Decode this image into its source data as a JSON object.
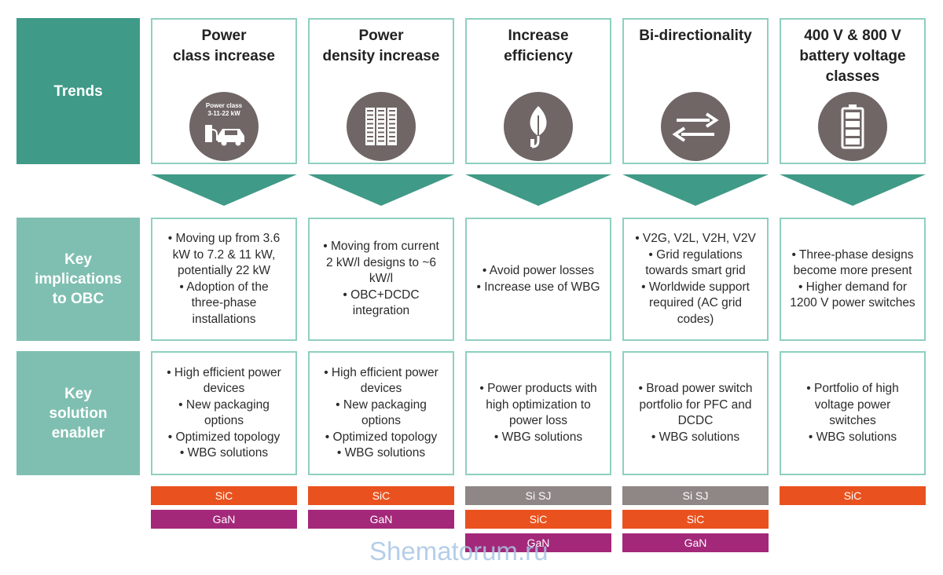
{
  "row_labels": {
    "trends": "Trends",
    "implications": "Key\nimplications\nto OBC",
    "enabler": "Key\nsolution\nenabler"
  },
  "colors": {
    "trend_label_bg": "#3f9a87",
    "row_label_bg": "#7fbfb1",
    "box_border": "#8fcfc0",
    "arrow": "#3f9a87",
    "icon_bg": "#706666",
    "SiC": "#e9521e",
    "GaN": "#a3287a",
    "Si SJ": "#8f8686"
  },
  "columns": [
    {
      "title": "Power\nclass increase",
      "icon": "ev-charging-icon",
      "icon_text": [
        "Power class",
        "3-11-22 kW"
      ],
      "implications": [
        "• Moving up from 3.6\nkW to 7.2 & 11 kW,\npotentially 22 kW",
        "• Adoption of the\nthree-phase\ninstallations"
      ],
      "enablers": [
        "• High efficient power\ndevices",
        "• New packaging\noptions",
        "• Optimized topology",
        "• WBG solutions"
      ],
      "technologies": [
        "SiC",
        "GaN"
      ]
    },
    {
      "title": "Power\ndensity increase",
      "icon": "server-rack-icon",
      "icon_text": [],
      "implications": [
        "• Moving from current\n2 kW/l designs to ~6\nkW/l",
        "• OBC+DCDC\nintegration"
      ],
      "enablers": [
        "• High efficient power\ndevices",
        "• New packaging\noptions",
        "• Optimized topology",
        "• WBG solutions"
      ],
      "technologies": [
        "SiC",
        "GaN"
      ]
    },
    {
      "title": "Increase\nefficiency",
      "icon": "leaf-plug-icon",
      "icon_text": [],
      "implications": [
        "• Avoid power losses",
        "• Increase use of WBG"
      ],
      "enablers": [
        "• Power products with\nhigh optimization to\npower loss",
        "• WBG solutions"
      ],
      "technologies": [
        "Si SJ",
        "SiC",
        "GaN"
      ]
    },
    {
      "title": "Bi-directionality",
      "icon": "bidirectional-arrows-icon",
      "icon_text": [],
      "implications": [
        "• V2G, V2L, V2H, V2V",
        "• Grid regulations\ntowards smart grid",
        "• Worldwide support\nrequired (AC grid\ncodes)"
      ],
      "enablers": [
        "• Broad power switch\nportfolio for PFC and\nDCDC",
        "• WBG solutions"
      ],
      "technologies": [
        "Si SJ",
        "SiC",
        "GaN"
      ]
    },
    {
      "title": "400 V & 800 V\nbattery voltage\nclasses",
      "icon": "battery-icon",
      "icon_text": [],
      "implications": [
        "• Three-phase designs\nbecome more present",
        "• Higher demand for\n1200 V power switches"
      ],
      "enablers": [
        "• Portfolio of high\nvoltage power\nswitches",
        "• WBG solutions"
      ],
      "technologies": [
        "SiC"
      ]
    }
  ],
  "watermark": "Shematorum.ru"
}
